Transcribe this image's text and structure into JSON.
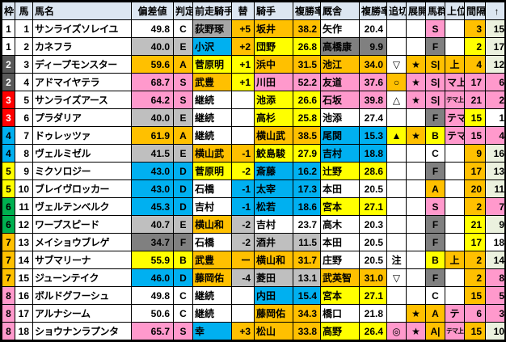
{
  "table": {
    "headers": [
      "枠",
      "馬",
      "馬名",
      "偏差値",
      "判定",
      "前走騎手",
      "替",
      "騎手",
      "複勝率",
      "厩舎",
      "複勝率",
      "追切",
      "展開",
      "馬群",
      "上位",
      "間隔",
      "↑"
    ],
    "palette": {
      "orange": "#FFC000",
      "yellow": "#FFFF00",
      "pink": "#FF99CC",
      "cyan": "#00B0F0",
      "silver": "#BFBFBF",
      "gray": "#808080",
      "dark": "#595959",
      "red": "#FF0000",
      "green": "#00B050",
      "lightgreen": "#EBF1DE",
      "header": "#DCE6F1",
      "white": "#FFFFFF"
    },
    "rows": [
      {
        "waku": "1",
        "waku_bg": "#FFFFFF",
        "waku_fg": "#000000",
        "num": "1",
        "name": "サンライズソレイユ",
        "dev": "49.8",
        "grade": "C",
        "dev_bg": "#FFFFFF",
        "prev": "荻野琢",
        "prev_bg": "#A6A6A6",
        "chg": "+5",
        "chg_bg": "#FFC000",
        "jockey": "坂井",
        "jockey_rate": "38.2",
        "jockey_bg": "#FFC000",
        "stable": "矢作",
        "stable_rate": "20.4",
        "stable_bg": "#FFFFFF",
        "oikiri": "",
        "oikiri_bg": "#FFFFFF",
        "tenkai": "",
        "tenkai_bg": "#FFFFFF",
        "bagun": "S",
        "bagun_bg": "#FF99CC",
        "joi": "",
        "joi_bg": "#FFFFFF",
        "joi_small": false,
        "kankaku": "3",
        "kankaku_bg": "#FFC000",
        "up": "15",
        "up_bg": "#EBF1DE"
      },
      {
        "waku": "1",
        "waku_bg": "#FFFFFF",
        "waku_fg": "#000000",
        "num": "2",
        "name": "カネフラ",
        "dev": "40.0",
        "grade": "E",
        "dev_bg": "#BFBFBF",
        "prev": "小沢",
        "prev_bg": "#00B0F0",
        "chg": "+2",
        "chg_bg": "#FFC000",
        "jockey": "団野",
        "jockey_rate": "26.8",
        "jockey_bg": "#FFFF00",
        "stable": "高橋康",
        "stable_rate": "9.9",
        "stable_bg": "#808080",
        "oikiri": "",
        "oikiri_bg": "#FFFFFF",
        "tenkai": "",
        "tenkai_bg": "#FFFFFF",
        "bagun": "F",
        "bagun_bg": "#808080",
        "joi": "",
        "joi_bg": "#FFFFFF",
        "joi_small": false,
        "kankaku": "2",
        "kankaku_bg": "#FFFF00",
        "up": "17",
        "up_bg": "#EBF1DE"
      },
      {
        "waku": "2",
        "waku_bg": "#595959",
        "waku_fg": "#FFFFFF",
        "num": "3",
        "name": "ディープモンスター",
        "dev": "59.6",
        "grade": "A",
        "dev_bg": "#FFC000",
        "prev": "菅原明",
        "prev_bg": "#FFFF00",
        "chg": "+1",
        "chg_bg": "#FFFF00",
        "jockey": "浜中",
        "jockey_rate": "31.5",
        "jockey_bg": "#FFC000",
        "stable": "池江",
        "stable_rate": "34.0",
        "stable_bg": "#FFC000",
        "oikiri": "▽",
        "oikiri_bg": "#FFFFFF",
        "tenkai": "★",
        "tenkai_bg": "#FFC000",
        "bagun": "S|",
        "bagun_bg": "#FFC000",
        "joi": "上",
        "joi_bg": "#FFC000",
        "joi_small": false,
        "kankaku": "4",
        "kankaku_bg": "#FFC000",
        "up": "12",
        "up_bg": "#EBF1DE"
      },
      {
        "waku": "2",
        "waku_bg": "#595959",
        "waku_fg": "#FFFFFF",
        "num": "4",
        "name": "アドマイヤテラ",
        "dev": "68.7",
        "grade": "S",
        "dev_bg": "#FF99CC",
        "prev": "武豊",
        "prev_bg": "#FFC000",
        "chg": "+1",
        "chg_bg": "#FFFF00",
        "jockey": "川田",
        "jockey_rate": "52.2",
        "jockey_bg": "#FF99CC",
        "stable": "友道",
        "stable_rate": "37.6",
        "stable_bg": "#FF99CC",
        "oikiri": "○",
        "oikiri_bg": "#FFC000",
        "tenkai": "★",
        "tenkai_bg": "#FF99CC",
        "bagun": "S|",
        "bagun_bg": "#FF99CC",
        "joi": "マ上",
        "joi_bg": "#FF99CC",
        "joi_small": false,
        "kankaku": "17",
        "kankaku_bg": "#FF99CC",
        "up": "6",
        "up_bg": "#FF99CC"
      },
      {
        "waku": "3",
        "waku_bg": "#FF0000",
        "waku_fg": "#FFFFFF",
        "num": "5",
        "name": "サンライズアース",
        "dev": "64.2",
        "grade": "S",
        "dev_bg": "#FF99CC",
        "prev": "継続",
        "prev_bg": "#FFFFFF",
        "chg": "",
        "chg_bg": "#FFFFFF",
        "jockey": "池添",
        "jockey_rate": "26.6",
        "jockey_bg": "#FFFF00",
        "stable": "石坂",
        "stable_rate": "39.8",
        "stable_bg": "#FF99CC",
        "oikiri": "△",
        "oikiri_bg": "#FFFFFF",
        "tenkai": "★",
        "tenkai_bg": "#FF99CC",
        "bagun": "S|",
        "bagun_bg": "#FF99CC",
        "joi": "テマ上",
        "joi_bg": "#FF99CC",
        "joi_small": true,
        "kankaku": "21",
        "kankaku_bg": "#FF99CC",
        "up": "2",
        "up_bg": "#FF99CC"
      },
      {
        "waku": "3",
        "waku_bg": "#FF0000",
        "waku_fg": "#FFFFFF",
        "num": "6",
        "name": "プラダリア",
        "dev": "40.0",
        "grade": "E",
        "dev_bg": "#BFBFBF",
        "prev": "継続",
        "prev_bg": "#FFFFFF",
        "chg": "",
        "chg_bg": "#FFFFFF",
        "jockey": "高杉",
        "jockey_rate": "25.8",
        "jockey_bg": "#FFFF00",
        "stable": "池添",
        "stable_rate": "27.4",
        "stable_bg": "#FFFFFF",
        "oikiri": "",
        "oikiri_bg": "#FFFFFF",
        "tenkai": "",
        "tenkai_bg": "#FFFFFF",
        "bagun": "F",
        "bagun_bg": "#808080",
        "joi": "テマ",
        "joi_bg": "#FF99CC",
        "joi_small": false,
        "kankaku": "15",
        "kankaku_bg": "#FFFF00",
        "up": "1",
        "up_bg": "#FFFFFF"
      },
      {
        "waku": "4",
        "waku_bg": "#00B0F0",
        "waku_fg": "#000000",
        "num": "7",
        "name": "ドゥレッツァ",
        "dev": "61.9",
        "grade": "A",
        "dev_bg": "#FFC000",
        "prev": "継続",
        "prev_bg": "#FFFFFF",
        "chg": "",
        "chg_bg": "#FFFFFF",
        "jockey": "横山武",
        "jockey_rate": "38.5",
        "jockey_bg": "#FFC000",
        "stable": "尾関",
        "stable_rate": "15.3",
        "stable_bg": "#00B0F0",
        "oikiri": "▲",
        "oikiri_bg": "#FFFF00",
        "tenkai": "★",
        "tenkai_bg": "#FFC000",
        "bagun": "B",
        "bagun_bg": "#FFFF00",
        "joi": "テマ",
        "joi_bg": "#FF99CC",
        "joi_small": false,
        "kankaku": "15",
        "kankaku_bg": "#FF99CC",
        "up": "4",
        "up_bg": "#FF99CC"
      },
      {
        "waku": "4",
        "waku_bg": "#00B0F0",
        "waku_fg": "#000000",
        "num": "8",
        "name": "ヴェルミゼル",
        "dev": "41.5",
        "grade": "E",
        "dev_bg": "#BFBFBF",
        "prev": "横山武",
        "prev_bg": "#FFC000",
        "chg": "-1",
        "chg_bg": "#FFC000",
        "jockey": "鮫島駿",
        "jockey_rate": "27.9",
        "jockey_bg": "#FFFF00",
        "stable": "吉村",
        "stable_rate": "18.8",
        "stable_bg": "#00B0F0",
        "oikiri": "",
        "oikiri_bg": "#FFFFFF",
        "tenkai": "",
        "tenkai_bg": "#FFFFFF",
        "bagun": "C",
        "bagun_bg": "#FFFFFF",
        "joi": "",
        "joi_bg": "#FFFFFF",
        "joi_small": false,
        "kankaku": "9",
        "kankaku_bg": "#FFC000",
        "up": "16",
        "up_bg": "#EBF1DE"
      },
      {
        "waku": "5",
        "waku_bg": "#FFFF00",
        "waku_fg": "#000000",
        "num": "9",
        "name": "ミクソロジー",
        "dev": "43.0",
        "grade": "D",
        "dev_bg": "#00B0F0",
        "prev": "菅原明",
        "prev_bg": "#FFFF00",
        "chg": "-2",
        "chg_bg": "#FFFF00",
        "jockey": "斎藤",
        "jockey_rate": "16.2",
        "jockey_bg": "#00B0F0",
        "stable": "辻野",
        "stable_rate": "28.6",
        "stable_bg": "#FFFF00",
        "oikiri": "",
        "oikiri_bg": "#FFFFFF",
        "tenkai": "",
        "tenkai_bg": "#FFFFFF",
        "bagun": "F",
        "bagun_bg": "#808080",
        "joi": "",
        "joi_bg": "#FFFFFF",
        "joi_small": false,
        "kankaku": "17",
        "kankaku_bg": "#FFC000",
        "up": "13",
        "up_bg": "#EBF1DE"
      },
      {
        "waku": "5",
        "waku_bg": "#FFFF00",
        "waku_fg": "#000000",
        "num": "10",
        "name": "ブレイヴロッカー",
        "dev": "43.0",
        "grade": "D",
        "dev_bg": "#00B0F0",
        "prev": "石橋",
        "prev_bg": "#FFFFFF",
        "chg": "-1",
        "chg_bg": "#00B0F0",
        "jockey": "太宰",
        "jockey_rate": "17.3",
        "jockey_bg": "#00B0F0",
        "stable": "本田",
        "stable_rate": "20.5",
        "stable_bg": "#FFFFFF",
        "oikiri": "",
        "oikiri_bg": "#FFFFFF",
        "tenkai": "",
        "tenkai_bg": "#FFFFFF",
        "bagun": "A",
        "bagun_bg": "#FFC000",
        "joi": "",
        "joi_bg": "#FFFFFF",
        "joi_small": false,
        "kankaku": "20",
        "kankaku_bg": "#FFC000",
        "up": "11",
        "up_bg": "#EBF1DE"
      },
      {
        "waku": "6",
        "waku_bg": "#00B050",
        "waku_fg": "#000000",
        "num": "11",
        "name": "ヴェルテンベルク",
        "dev": "45.3",
        "grade": "D",
        "dev_bg": "#00B0F0",
        "prev": "吉村",
        "prev_bg": "#FFFFFF",
        "chg": "-1",
        "chg_bg": "#00B0F0",
        "jockey": "松若",
        "jockey_rate": "18.6",
        "jockey_bg": "#00B0F0",
        "stable": "宮本",
        "stable_rate": "27.1",
        "stable_bg": "#FFFF00",
        "oikiri": "",
        "oikiri_bg": "#FFFFFF",
        "tenkai": "",
        "tenkai_bg": "#FFFFFF",
        "bagun": "S",
        "bagun_bg": "#FF99CC",
        "joi": "",
        "joi_bg": "#FFFFFF",
        "joi_small": false,
        "kankaku": "2",
        "kankaku_bg": "#FFC000",
        "up": "7",
        "up_bg": "#FF99CC"
      },
      {
        "waku": "6",
        "waku_bg": "#00B050",
        "waku_fg": "#000000",
        "num": "12",
        "name": "ワープスピード",
        "dev": "40.7",
        "grade": "E",
        "dev_bg": "#BFBFBF",
        "prev": "横山和",
        "prev_bg": "#FFC000",
        "chg": "-2",
        "chg_bg": "#BFBFBF",
        "jockey": "吉村",
        "jockey_rate": "23.7",
        "jockey_bg": "#FFFFFF",
        "stable": "高木",
        "stable_rate": "20.3",
        "stable_bg": "#FFFFFF",
        "oikiri": "",
        "oikiri_bg": "#FFFFFF",
        "tenkai": "",
        "tenkai_bg": "#FFFFFF",
        "bagun": "F",
        "bagun_bg": "#808080",
        "joi": "",
        "joi_bg": "#FFFFFF",
        "joi_small": false,
        "kankaku": "21",
        "kankaku_bg": "#FFFF00",
        "up": "9",
        "up_bg": "#EBF1DE"
      },
      {
        "waku": "7",
        "waku_bg": "#FFC000",
        "waku_fg": "#000000",
        "num": "13",
        "name": "メイショウブレゲ",
        "dev": "34.7",
        "grade": "F",
        "dev_bg": "#808080",
        "prev": "石橋",
        "prev_bg": "#FFFFFF",
        "chg": "-2",
        "chg_bg": "#BFBFBF",
        "jockey": "酒井",
        "jockey_rate": "11.5",
        "jockey_bg": "#BFBFBF",
        "stable": "本田",
        "stable_rate": "20.5",
        "stable_bg": "#FFFFFF",
        "oikiri": "",
        "oikiri_bg": "#FFFFFF",
        "tenkai": "",
        "tenkai_bg": "#FFFFFF",
        "bagun": "F",
        "bagun_bg": "#808080",
        "joi": "",
        "joi_bg": "#FFFFFF",
        "joi_small": false,
        "kankaku": "17",
        "kankaku_bg": "#FFFF00",
        "up": "18",
        "up_bg": "#FFFFFF"
      },
      {
        "waku": "7",
        "waku_bg": "#FFC000",
        "waku_fg": "#000000",
        "num": "14",
        "name": "サブマリーナ",
        "dev": "55.9",
        "grade": "B",
        "dev_bg": "#FFFF00",
        "prev": "武豊",
        "prev_bg": "#FFC000",
        "chg": "ー",
        "chg_bg": "#FFC000",
        "jockey": "横山和",
        "jockey_rate": "31.7",
        "jockey_bg": "#FFC000",
        "stable": "庄野",
        "stable_rate": "20.5",
        "stable_bg": "#FFFFFF",
        "oikiri": "注",
        "oikiri_bg": "#FFFFFF",
        "tenkai": "",
        "tenkai_bg": "#FFFFFF",
        "bagun": "B",
        "bagun_bg": "#FFFF00",
        "joi": "上",
        "joi_bg": "#FFC000",
        "joi_small": false,
        "kankaku": "2",
        "kankaku_bg": "#FFC000",
        "up": "14",
        "up_bg": "#EBF1DE"
      },
      {
        "waku": "7",
        "waku_bg": "#FFC000",
        "waku_fg": "#000000",
        "num": "15",
        "name": "ジューンテイク",
        "dev": "46.0",
        "grade": "D",
        "dev_bg": "#00B0F0",
        "prev": "藤岡佑",
        "prev_bg": "#FFC000",
        "chg": "-4",
        "chg_bg": "#BFBFBF",
        "jockey": "菱田",
        "jockey_rate": "13.1",
        "jockey_bg": "#BFBFBF",
        "stable": "武英智",
        "stable_rate": "31.0",
        "stable_bg": "#FFC000",
        "oikiri": "▽",
        "oikiri_bg": "#FFFFFF",
        "tenkai": "",
        "tenkai_bg": "#FFFFFF",
        "bagun": "F",
        "bagun_bg": "#808080",
        "joi": "",
        "joi_bg": "#FFFFFF",
        "joi_small": false,
        "kankaku": "2",
        "kankaku_bg": "#FFC000",
        "up": "8",
        "up_bg": "#FF99CC"
      },
      {
        "waku": "8",
        "waku_bg": "#FF99CC",
        "waku_fg": "#000000",
        "num": "16",
        "name": "ボルドグフーシュ",
        "dev": "49.8",
        "grade": "C",
        "dev_bg": "#FFFFFF",
        "prev": "継続",
        "prev_bg": "#FFFFFF",
        "chg": "",
        "chg_bg": "#FFFFFF",
        "jockey": "内田",
        "jockey_rate": "15.4",
        "jockey_bg": "#00B0F0",
        "stable": "宮本",
        "stable_rate": "27.1",
        "stable_bg": "#FFFF00",
        "oikiri": "",
        "oikiri_bg": "#FFFFFF",
        "tenkai": "",
        "tenkai_bg": "#FFFFFF",
        "bagun": "C",
        "bagun_bg": "#FFFFFF",
        "joi": "",
        "joi_bg": "#FFFFFF",
        "joi_small": false,
        "kankaku": "15",
        "kankaku_bg": "#FFC000",
        "up": "5",
        "up_bg": "#FF99CC"
      },
      {
        "waku": "8",
        "waku_bg": "#FF99CC",
        "waku_fg": "#000000",
        "num": "17",
        "name": "アルナシーム",
        "dev": "50.6",
        "grade": "C",
        "dev_bg": "#FFFFFF",
        "prev": "継続",
        "prev_bg": "#FFFFFF",
        "chg": "",
        "chg_bg": "#FFFFFF",
        "jockey": "藤岡佑",
        "jockey_rate": "34.3",
        "jockey_bg": "#FFC000",
        "stable": "橋口",
        "stable_rate": "21.8",
        "stable_bg": "#FFFFFF",
        "oikiri": "",
        "oikiri_bg": "#FFFFFF",
        "tenkai": "★",
        "tenkai_bg": "#FFC000",
        "bagun": "A",
        "bagun_bg": "#FFC000",
        "joi": "テ",
        "joi_bg": "#FF99CC",
        "joi_small": false,
        "kankaku": "6",
        "kankaku_bg": "#FF99CC",
        "up": "3",
        "up_bg": "#FF99CC"
      },
      {
        "waku": "8",
        "waku_bg": "#FF99CC",
        "waku_fg": "#000000",
        "num": "18",
        "name": "ショウナンラプンタ",
        "dev": "65.7",
        "grade": "S",
        "dev_bg": "#FF99CC",
        "prev": "幸",
        "prev_bg": "#00B0F0",
        "chg": "+3",
        "chg_bg": "#FFC000",
        "jockey": "松山",
        "jockey_rate": "33.8",
        "jockey_bg": "#FFC000",
        "stable": "高野",
        "stable_rate": "26.4",
        "stable_bg": "#FFFF00",
        "oikiri": "◎",
        "oikiri_bg": "#FF99CC",
        "tenkai": "★",
        "tenkai_bg": "#FF99CC",
        "bagun": "A|",
        "bagun_bg": "#FFC000",
        "joi": "テマ上",
        "joi_bg": "#FF99CC",
        "joi_small": true,
        "kankaku": "15",
        "kankaku_bg": "#FFC000",
        "up": "10",
        "up_bg": "#EBF1DE"
      }
    ]
  }
}
